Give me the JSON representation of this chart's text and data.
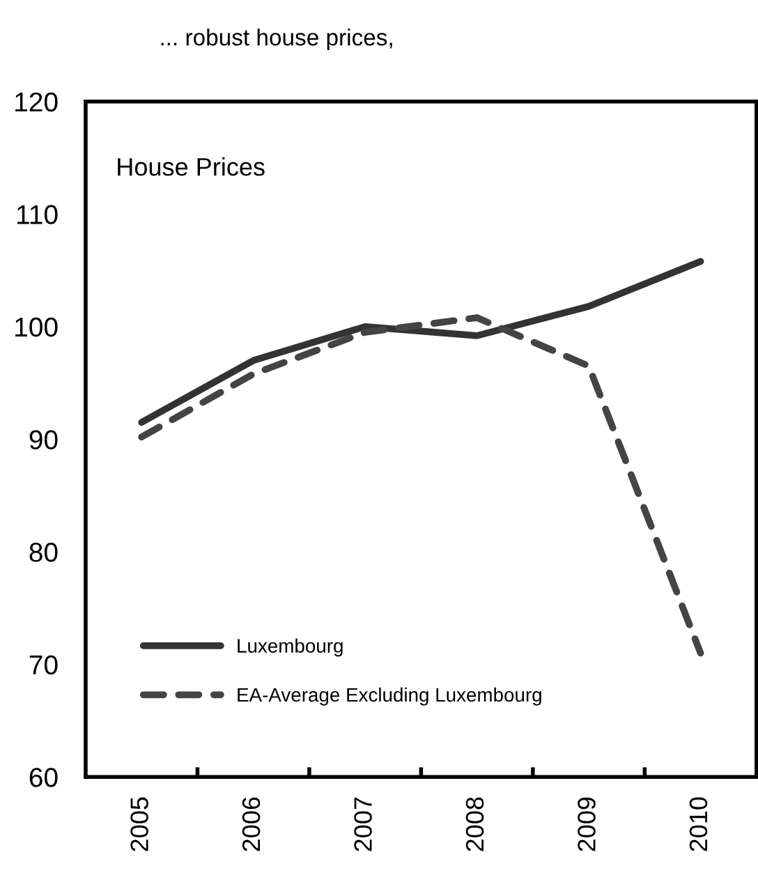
{
  "chart_data": {
    "type": "line",
    "title": "... robust house prices,",
    "subtitle": "House Prices",
    "categories": [
      "2005",
      "2006",
      "2007",
      "2008",
      "2009",
      "2010"
    ],
    "series": [
      {
        "name": "Luxembourg",
        "color": "#333333",
        "line_style": "solid",
        "values": [
          91.5,
          97,
          100,
          99.2,
          101.8,
          105.8
        ]
      },
      {
        "name": "EA-Average Excluding Luxembourg",
        "color": "#444444",
        "line_style": "dashed",
        "values": [
          90.2,
          95.8,
          99.5,
          100.8,
          96.5,
          71
        ]
      }
    ],
    "ylim": [
      60,
      120
    ],
    "yticks": [
      60,
      70,
      80,
      90,
      100,
      110,
      120
    ],
    "grid": false,
    "legend": "bottom left",
    "marker": "none"
  }
}
